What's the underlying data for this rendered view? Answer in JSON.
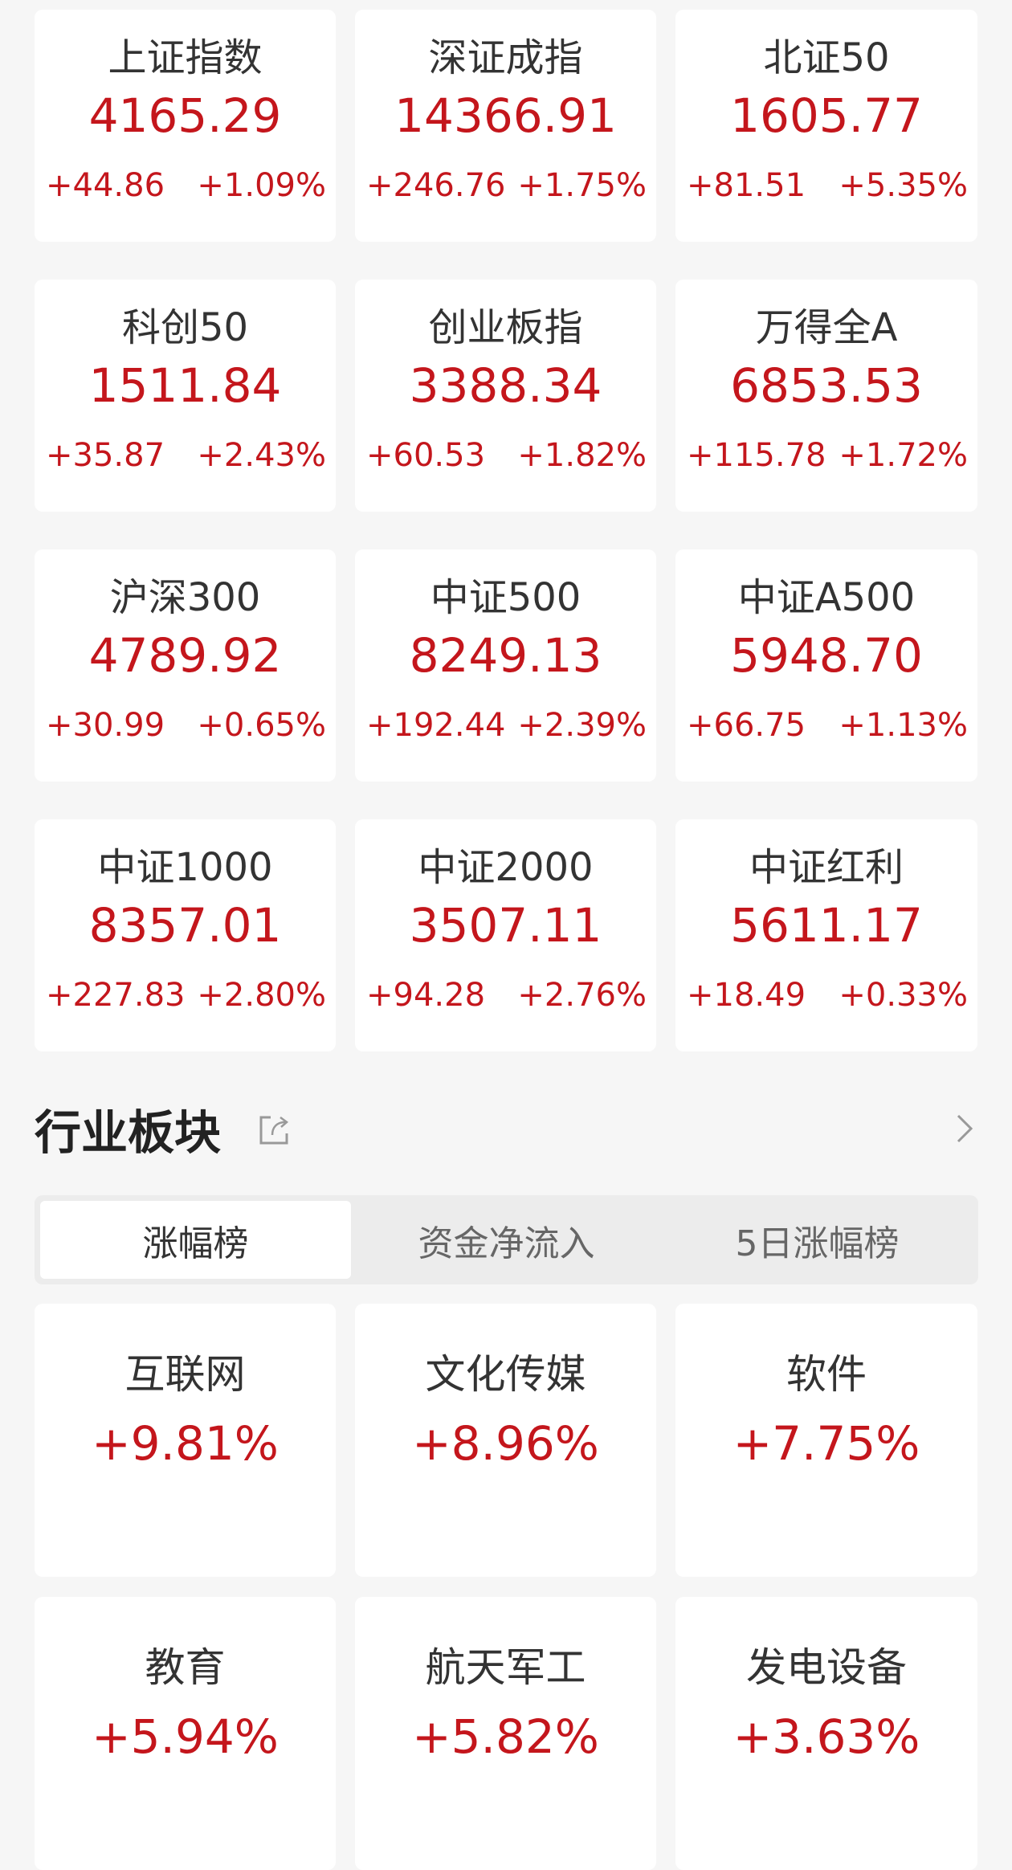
{
  "colors": {
    "up": "#c4161c",
    "background": "#f6f6f6",
    "card": "#ffffff"
  },
  "indices": [
    {
      "name": "上证指数",
      "price": "4165.29",
      "change": "+44.86",
      "pct": "+1.09%"
    },
    {
      "name": "深证成指",
      "price": "14366.91",
      "change": "+246.76",
      "pct": "+1.75%"
    },
    {
      "name": "北证50",
      "price": "1605.77",
      "change": "+81.51",
      "pct": "+5.35%"
    },
    {
      "name": "科创50",
      "price": "1511.84",
      "change": "+35.87",
      "pct": "+2.43%"
    },
    {
      "name": "创业板指",
      "price": "3388.34",
      "change": "+60.53",
      "pct": "+1.82%"
    },
    {
      "name": "万得全A",
      "price": "6853.53",
      "change": "+115.78",
      "pct": "+1.72%"
    },
    {
      "name": "沪深300",
      "price": "4789.92",
      "change": "+30.99",
      "pct": "+0.65%"
    },
    {
      "name": "中证500",
      "price": "8249.13",
      "change": "+192.44",
      "pct": "+2.39%"
    },
    {
      "name": "中证A500",
      "price": "5948.70",
      "change": "+66.75",
      "pct": "+1.13%"
    },
    {
      "name": "中证1000",
      "price": "8357.01",
      "change": "+227.83",
      "pct": "+2.80%"
    },
    {
      "name": "中证2000",
      "price": "3507.11",
      "change": "+94.28",
      "pct": "+2.76%"
    },
    {
      "name": "中证红利",
      "price": "5611.17",
      "change": "+18.49",
      "pct": "+0.33%"
    }
  ],
  "sector": {
    "title": "行业板块",
    "share_icon": "share-icon",
    "more_icon": "chevron-right-icon",
    "tabs": [
      {
        "label": "涨幅榜",
        "active": true
      },
      {
        "label": "资金净流入"
      },
      {
        "label": "5日涨幅榜"
      }
    ],
    "items": [
      {
        "name": "互联网",
        "pct": "+9.81%"
      },
      {
        "name": "文化传媒",
        "pct": "+8.96%"
      },
      {
        "name": "软件",
        "pct": "+7.75%"
      },
      {
        "name": "教育",
        "pct": "+5.94%"
      },
      {
        "name": "航天军工",
        "pct": "+5.82%"
      },
      {
        "name": "发电设备",
        "pct": "+3.63%"
      }
    ]
  }
}
